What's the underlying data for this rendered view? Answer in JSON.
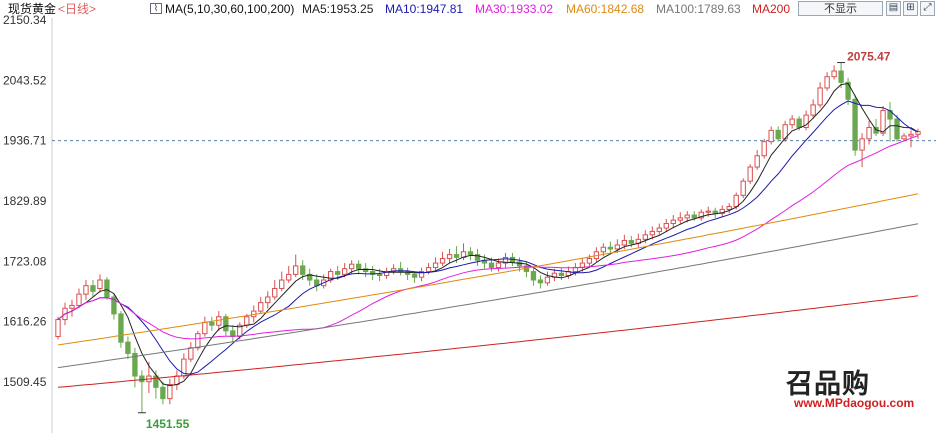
{
  "header": {
    "instrument": "现货黄金",
    "period": "<日线>",
    "ma_label": "MA(5,10,30,60,100,200)",
    "ma_values": [
      {
        "text": "MA5:1953.25",
        "color": "#222222"
      },
      {
        "text": "MA10:1947.81",
        "color": "#1a1ab0"
      },
      {
        "text": "MA30:1933.02",
        "color": "#e020e0"
      },
      {
        "text": "MA60:1842.68",
        "color": "#e08a10"
      },
      {
        "text": "MA100:1789.63",
        "color": "#777777"
      },
      {
        "text": "MA200",
        "color": "#cc2222"
      }
    ],
    "hide_button": "不显示",
    "icons": [
      "chart-settings-icon",
      "grid-icon",
      "expand-icon"
    ]
  },
  "watermark": {
    "logo": "召品购",
    "url": "www.MPdaogou.com"
  },
  "chart_data": {
    "type": "candlestick",
    "y_ticks": [
      "2150.34",
      "2043.52",
      "1936.71",
      "1829.89",
      "1723.08",
      "1616.26",
      "1509.45"
    ],
    "ylim": [
      1451.55,
      2150.34
    ],
    "annotations": {
      "high": "2075.47",
      "low": "1451.55",
      "current_level": 1936.71
    },
    "colors": {
      "up": "#d85050",
      "down": "#6aa84f",
      "ma5": "#222222",
      "ma10": "#1a1ab0",
      "ma30": "#e020e0",
      "ma60": "#e08a10",
      "ma100": "#777777",
      "ma200": "#cc2222"
    },
    "candles": [
      [
        1590,
        1620,
        1585,
        1625
      ],
      [
        1620,
        1640,
        1610,
        1650
      ],
      [
        1640,
        1645,
        1625,
        1655
      ],
      [
        1645,
        1665,
        1640,
        1675
      ],
      [
        1665,
        1680,
        1655,
        1690
      ],
      [
        1680,
        1670,
        1660,
        1690
      ],
      [
        1675,
        1690,
        1668,
        1700
      ],
      [
        1690,
        1660,
        1655,
        1695
      ],
      [
        1660,
        1630,
        1620,
        1665
      ],
      [
        1630,
        1580,
        1570,
        1635
      ],
      [
        1580,
        1560,
        1550,
        1590
      ],
      [
        1560,
        1520,
        1500,
        1570
      ],
      [
        1520,
        1510,
        1455,
        1530
      ],
      [
        1510,
        1520,
        1490,
        1545
      ],
      [
        1520,
        1500,
        1480,
        1530
      ],
      [
        1500,
        1480,
        1470,
        1510
      ],
      [
        1480,
        1505,
        1470,
        1515
      ],
      [
        1505,
        1520,
        1495,
        1530
      ],
      [
        1520,
        1550,
        1515,
        1560
      ],
      [
        1550,
        1570,
        1545,
        1580
      ],
      [
        1570,
        1595,
        1565,
        1600
      ],
      [
        1595,
        1615,
        1590,
        1625
      ],
      [
        1615,
        1610,
        1600,
        1625
      ],
      [
        1610,
        1625,
        1600,
        1635
      ],
      [
        1625,
        1600,
        1590,
        1630
      ],
      [
        1600,
        1590,
        1580,
        1610
      ],
      [
        1590,
        1610,
        1585,
        1615
      ],
      [
        1610,
        1625,
        1605,
        1630
      ],
      [
        1625,
        1635,
        1615,
        1645
      ],
      [
        1635,
        1650,
        1630,
        1660
      ],
      [
        1650,
        1660,
        1640,
        1670
      ],
      [
        1660,
        1675,
        1655,
        1690
      ],
      [
        1675,
        1690,
        1670,
        1705
      ],
      [
        1690,
        1700,
        1685,
        1715
      ],
      [
        1700,
        1715,
        1695,
        1735
      ],
      [
        1715,
        1700,
        1690,
        1725
      ],
      [
        1700,
        1690,
        1680,
        1710
      ],
      [
        1690,
        1680,
        1670,
        1700
      ],
      [
        1680,
        1690,
        1675,
        1700
      ],
      [
        1690,
        1705,
        1685,
        1710
      ],
      [
        1705,
        1700,
        1690,
        1715
      ],
      [
        1700,
        1710,
        1695,
        1720
      ],
      [
        1710,
        1718,
        1700,
        1725
      ],
      [
        1718,
        1710,
        1700,
        1725
      ],
      [
        1710,
        1705,
        1695,
        1720
      ],
      [
        1705,
        1700,
        1690,
        1715
      ],
      [
        1700,
        1698,
        1688,
        1710
      ],
      [
        1698,
        1705,
        1692,
        1712
      ],
      [
        1705,
        1710,
        1700,
        1718
      ],
      [
        1710,
        1705,
        1698,
        1722
      ],
      [
        1705,
        1700,
        1690,
        1712
      ],
      [
        1700,
        1695,
        1685,
        1705
      ],
      [
        1695,
        1705,
        1688,
        1712
      ],
      [
        1705,
        1712,
        1700,
        1720
      ],
      [
        1712,
        1720,
        1705,
        1730
      ],
      [
        1720,
        1728,
        1715,
        1740
      ],
      [
        1728,
        1735,
        1720,
        1745
      ],
      [
        1735,
        1730,
        1720,
        1750
      ],
      [
        1730,
        1740,
        1725,
        1755
      ],
      [
        1740,
        1735,
        1725,
        1748
      ],
      [
        1735,
        1725,
        1715,
        1745
      ],
      [
        1725,
        1720,
        1710,
        1735
      ],
      [
        1720,
        1712,
        1705,
        1730
      ],
      [
        1712,
        1720,
        1705,
        1728
      ],
      [
        1720,
        1730,
        1712,
        1738
      ],
      [
        1730,
        1722,
        1715,
        1738
      ],
      [
        1722,
        1715,
        1705,
        1730
      ],
      [
        1715,
        1705,
        1695,
        1722
      ],
      [
        1705,
        1690,
        1680,
        1712
      ],
      [
        1690,
        1685,
        1675,
        1698
      ],
      [
        1685,
        1695,
        1680,
        1705
      ],
      [
        1695,
        1702,
        1688,
        1710
      ],
      [
        1702,
        1698,
        1690,
        1712
      ],
      [
        1698,
        1705,
        1692,
        1714
      ],
      [
        1705,
        1712,
        1698,
        1720
      ],
      [
        1712,
        1720,
        1705,
        1728
      ],
      [
        1720,
        1728,
        1712,
        1735
      ],
      [
        1728,
        1740,
        1722,
        1748
      ],
      [
        1740,
        1748,
        1732,
        1755
      ],
      [
        1748,
        1745,
        1738,
        1758
      ],
      [
        1745,
        1752,
        1738,
        1762
      ],
      [
        1752,
        1760,
        1745,
        1770
      ],
      [
        1760,
        1755,
        1748,
        1768
      ],
      [
        1755,
        1762,
        1748,
        1772
      ],
      [
        1762,
        1770,
        1755,
        1778
      ],
      [
        1770,
        1776,
        1762,
        1785
      ],
      [
        1776,
        1782,
        1770,
        1790
      ],
      [
        1782,
        1790,
        1775,
        1798
      ],
      [
        1790,
        1796,
        1782,
        1805
      ],
      [
        1796,
        1800,
        1790,
        1810
      ],
      [
        1800,
        1805,
        1792,
        1812
      ],
      [
        1805,
        1800,
        1795,
        1812
      ],
      [
        1800,
        1810,
        1795,
        1815
      ],
      [
        1810,
        1812,
        1802,
        1820
      ],
      [
        1812,
        1808,
        1800,
        1818
      ],
      [
        1808,
        1815,
        1802,
        1822
      ],
      [
        1815,
        1820,
        1808,
        1826
      ],
      [
        1820,
        1840,
        1815,
        1845
      ],
      [
        1840,
        1865,
        1835,
        1870
      ],
      [
        1865,
        1890,
        1860,
        1895
      ],
      [
        1890,
        1910,
        1885,
        1920
      ],
      [
        1910,
        1935,
        1905,
        1940
      ],
      [
        1935,
        1955,
        1930,
        1962
      ],
      [
        1955,
        1940,
        1935,
        1962
      ],
      [
        1940,
        1965,
        1935,
        1972
      ],
      [
        1965,
        1975,
        1958,
        1982
      ],
      [
        1975,
        1960,
        1955,
        1980
      ],
      [
        1960,
        1982,
        1955,
        1990
      ],
      [
        1982,
        2000,
        1975,
        2010
      ],
      [
        2000,
        2030,
        1995,
        2040
      ],
      [
        2030,
        2050,
        2025,
        2058
      ],
      [
        2050,
        2060,
        2045,
        2070
      ],
      [
        2060,
        2040,
        2030,
        2075
      ],
      [
        2040,
        2010,
        2000,
        2048
      ],
      [
        2010,
        1920,
        1910,
        2018
      ],
      [
        1920,
        1940,
        1890,
        1950
      ],
      [
        1940,
        1960,
        1930,
        1972
      ],
      [
        1960,
        1950,
        1945,
        1975
      ],
      [
        1950,
        1990,
        1945,
        1998
      ],
      [
        1990,
        1975,
        1935,
        2005
      ],
      [
        1975,
        1940,
        1935,
        1982
      ],
      [
        1940,
        1945,
        1935,
        1950
      ],
      [
        1945,
        1948,
        1925,
        1955
      ],
      [
        1948,
        1953,
        1940,
        1958
      ]
    ]
  }
}
